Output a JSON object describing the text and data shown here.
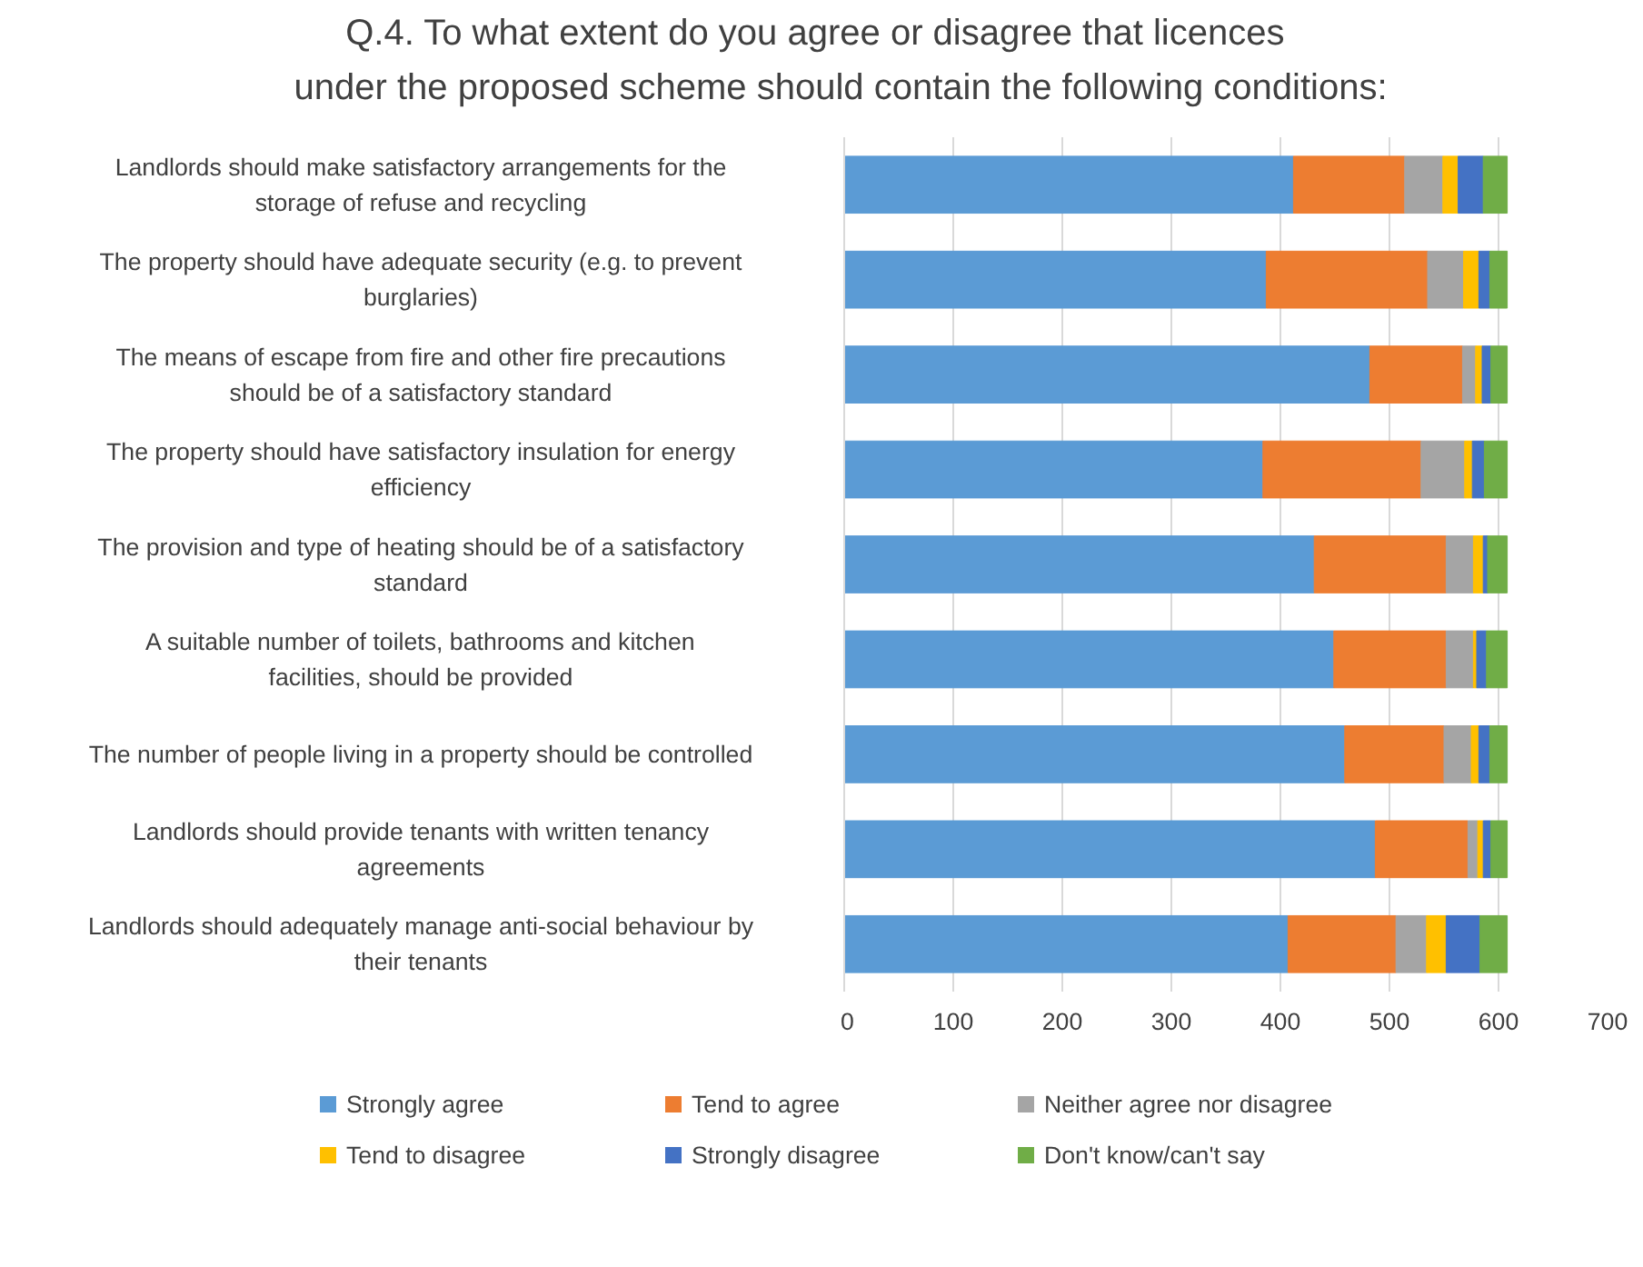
{
  "chart_data": {
    "type": "bar",
    "orientation": "horizontal",
    "stacked": true,
    "title": "Q.4.      To what extent do you agree or disagree that licences under the proposed scheme should contain the following conditions:",
    "categories": [
      "Landlords should make satisfactory arrangements for the storage of refuse and recycling",
      "The property should have adequate security (e.g. to prevent burglaries)",
      "The means of escape from fire and other fire precautions should be of a satisfactory standard",
      "The property should have satisfactory insulation for energy efficiency",
      "The provision and type of heating should be of a satisfactory standard",
      "A suitable number of toilets, bathrooms and kitchen facilities, should be provided",
      "The number of people living in a property should be controlled",
      "Landlords should provide tenants with written tenancy agreements",
      "Landlords should adequately manage anti-social behaviour by their tenants"
    ],
    "series": [
      {
        "name": "Strongly agree",
        "color": "#5b9bd5",
        "values": [
          412,
          387,
          482,
          384,
          431,
          449,
          459,
          487,
          407
        ]
      },
      {
        "name": "Tend to agree",
        "color": "#ed7d31",
        "values": [
          102,
          148,
          85,
          145,
          121,
          103,
          91,
          85,
          99
        ]
      },
      {
        "name": "Neither agree nor disagree",
        "color": "#a5a5a5",
        "values": [
          35,
          33,
          12,
          40,
          25,
          25,
          25,
          9,
          28
        ]
      },
      {
        "name": "Tend to disagree",
        "color": "#ffc000",
        "values": [
          14,
          14,
          6,
          7,
          9,
          3,
          7,
          5,
          18
        ]
      },
      {
        "name": "Strongly disagree",
        "color": "#4472c4",
        "values": [
          23,
          10,
          8,
          11,
          4,
          9,
          10,
          7,
          31
        ]
      },
      {
        "name": "Don't know/can't say",
        "color": "#70ad47",
        "values": [
          22,
          16,
          15,
          21,
          18,
          19,
          16,
          15,
          25
        ]
      }
    ],
    "xlim": [
      0,
      700
    ],
    "xticks": [
      0,
      100,
      200,
      300,
      400,
      500,
      600,
      700
    ],
    "grid": "x",
    "legend": "bottom"
  }
}
